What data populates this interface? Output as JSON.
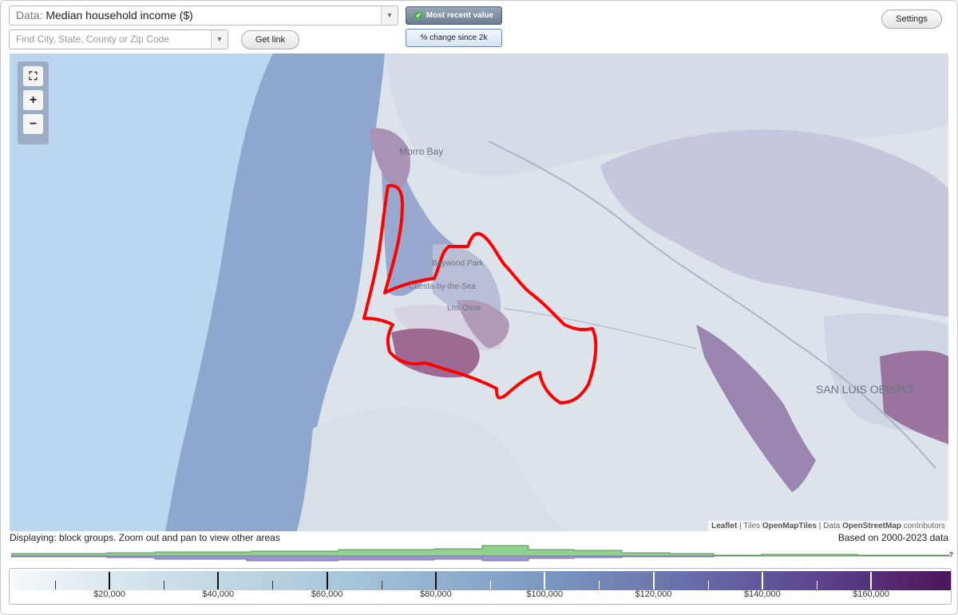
{
  "header": {
    "data_prefix": "Data:",
    "data_value": "Median household income ($)",
    "search_placeholder": "Find City, State, County or Zip Code",
    "get_link_label": "Get link",
    "mode_recent_label": "Most recent value",
    "mode_change_label": "% change since 2k",
    "settings_label": "Settings"
  },
  "map": {
    "zoom_in_label": "+",
    "zoom_out_label": "−",
    "places": {
      "morro_bay": "Morro Bay",
      "baywood_park": "Baywood Park",
      "cuesta": "Cuesta-by-the-Sea",
      "los_osos": "Los Osos",
      "slo": "SAN LUIS OBISPO"
    },
    "attribution": {
      "leaflet": "Leaflet",
      "sep1": "| Tiles",
      "tiles": "OpenMapTiles",
      "sep2": "| Data",
      "data": "OpenStreetMap",
      "tail": "contributors"
    },
    "colors": {
      "ocean": "#bcd6f0",
      "coast_water": "#8fa6cf",
      "land": "#dfe5ec",
      "highlight_outline": "#ff0000",
      "high_income": "#8c5a8c"
    }
  },
  "footer": {
    "display_note": "Displaying: block groups. Zoom out and pan to view other areas",
    "based_on": "Based on 2000-2023 data",
    "unknown_mark": "?"
  },
  "legend": {
    "labels": [
      "$20,000",
      "$40,000",
      "$60,000",
      "$80,000",
      "$100,000",
      "$120,000",
      "$140,000",
      "$160,000"
    ]
  }
}
